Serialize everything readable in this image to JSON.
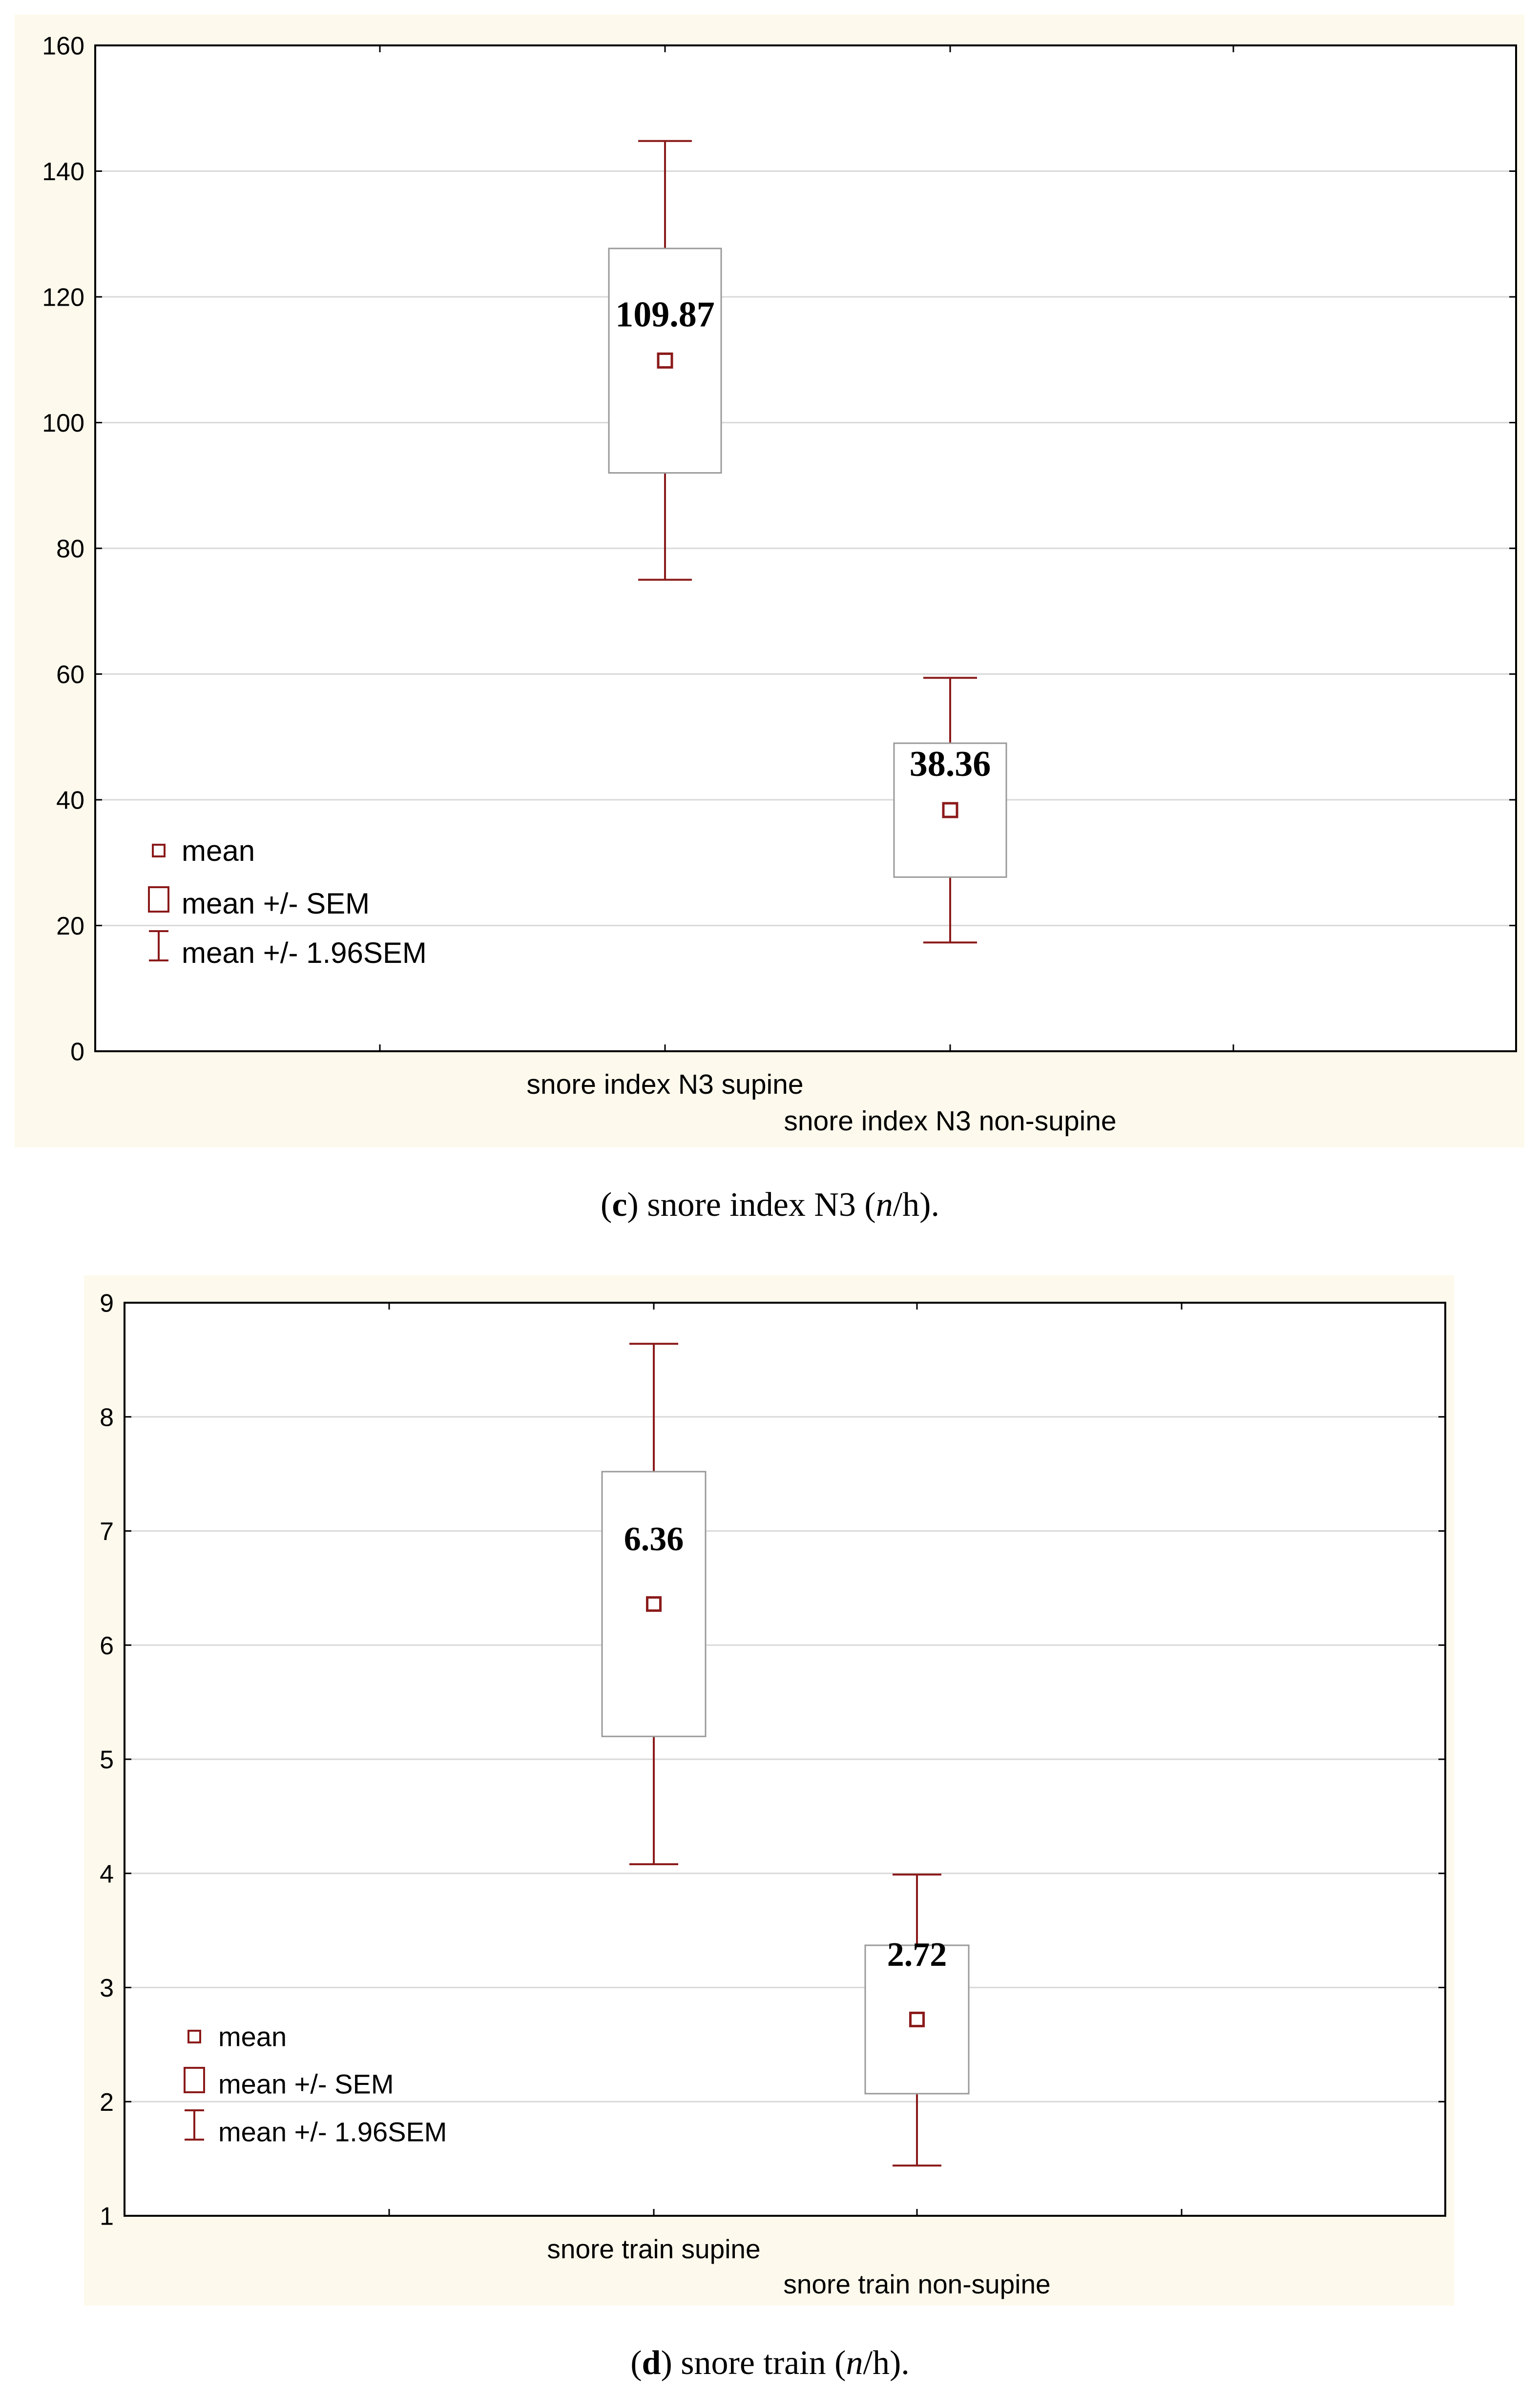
{
  "chart_data": [
    {
      "type": "box",
      "caption": {
        "letter": "c",
        "text": ") snore index N3 (",
        "unit_n": "n",
        "unit_rest": "/h)."
      },
      "ylim": [
        0,
        160
      ],
      "yticks": [
        0,
        20,
        40,
        60,
        80,
        100,
        120,
        140,
        160
      ],
      "categories": [
        "snore index N3 supine",
        "snore index N3 non-supine"
      ],
      "series": [
        {
          "mean": 109.87,
          "sem_low": 92.0,
          "sem_high": 127.7,
          "ci_low": 75.0,
          "ci_high": 144.8,
          "label": "109.87"
        },
        {
          "mean": 38.36,
          "sem_low": 27.7,
          "sem_high": 49.0,
          "ci_low": 17.3,
          "ci_high": 59.4,
          "label": "38.36"
        }
      ],
      "legend": [
        "mean",
        "mean +/- SEM",
        "mean +/- 1.96SEM"
      ],
      "grid": true,
      "legend_position": "bottom-left"
    },
    {
      "type": "box",
      "caption": {
        "letter": "d",
        "text": ") snore train (",
        "unit_n": "n",
        "unit_rest": "/h)."
      },
      "ylim": [
        1,
        9
      ],
      "yticks": [
        1,
        2,
        3,
        4,
        5,
        6,
        7,
        8,
        9
      ],
      "categories": [
        "snore train supine",
        "snore train non-supine"
      ],
      "series": [
        {
          "mean": 6.36,
          "sem_low": 5.2,
          "sem_high": 7.52,
          "ci_low": 4.08,
          "ci_high": 8.64,
          "label": "6.36"
        },
        {
          "mean": 2.72,
          "sem_low": 2.07,
          "sem_high": 3.37,
          "ci_low": 1.44,
          "ci_high": 3.99,
          "label": "2.72"
        }
      ],
      "legend": [
        "mean",
        "mean +/- SEM",
        "mean +/- 1.96SEM"
      ],
      "grid": true,
      "legend_position": "bottom-left"
    }
  ],
  "colors": {
    "panel_bg": "#fdf9ec",
    "plot_bg": "#ffffff",
    "grid": "#d9d9d9",
    "mark": "#8b1a1a",
    "box_border": "#9a9a9a",
    "axis": "#000000"
  }
}
